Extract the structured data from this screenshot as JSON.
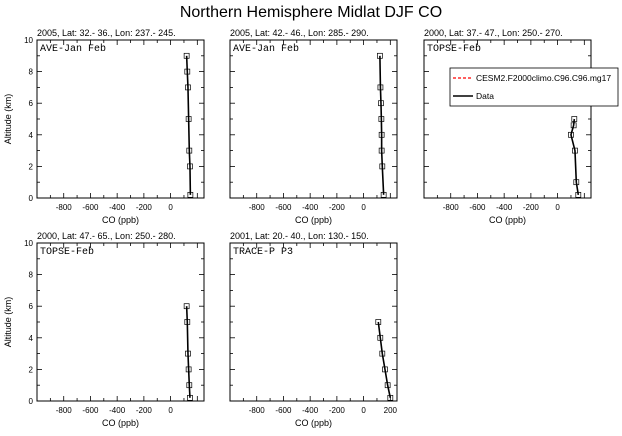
{
  "title": "Northern Hemisphere Midlat DJF CO",
  "legend": {
    "placement": "top-right",
    "entries": [
      {
        "label": "CESM2.F2000climo.C96.C96.mg17",
        "color": "#ff0000",
        "style": "dashed"
      },
      {
        "label": "Data",
        "color": "#000000",
        "style": "solid"
      }
    ]
  },
  "chart_data": [
    {
      "type": "line",
      "title": "2005, Lat: 32.- 36., Lon: 237.- 245.",
      "inset_label": "AVE-Jan Feb",
      "xlabel": "CO (ppb)",
      "ylabel": "Altitude (km)",
      "xlim": [
        -1000,
        250
      ],
      "ylim": [
        0,
        10
      ],
      "xticks": [
        "-800",
        "-600",
        "-400",
        "-200",
        "0"
      ],
      "yticks": [
        "0",
        "2",
        "4",
        "6",
        "8",
        "10"
      ],
      "series": [
        {
          "name": "Data",
          "x": [
            148,
            145,
            140,
            135,
            130,
            125,
            120
          ],
          "y": [
            0.2,
            2,
            3,
            5,
            7,
            8,
            9
          ]
        }
      ]
    },
    {
      "type": "line",
      "title": "2005, Lat: 42.- 46., Lon: 285.- 290.",
      "inset_label": "AVE-Jan Feb",
      "xlabel": "CO (ppb)",
      "ylabel": "",
      "xlim": [
        -1000,
        250
      ],
      "ylim": [
        0,
        10
      ],
      "xticks": [
        "-800",
        "-600",
        "-400",
        "-200",
        "0"
      ],
      "yticks": [],
      "series": [
        {
          "name": "Data",
          "x": [
            150,
            140,
            135,
            135,
            133,
            130,
            126,
            122
          ],
          "y": [
            0.2,
            2,
            3,
            4,
            5,
            6,
            7,
            9
          ]
        }
      ]
    },
    {
      "type": "line",
      "title": "2000, Lat: 37.- 47., Lon: 250.- 270.",
      "inset_label": "TOPSE-Feb",
      "xlabel": "CO (ppb)",
      "ylabel": "",
      "xlim": [
        -1000,
        250
      ],
      "ylim": [
        0,
        10
      ],
      "xticks": [
        "-800",
        "-600",
        "-400",
        "-200",
        "0"
      ],
      "yticks": [],
      "series": [
        {
          "name": "Data",
          "x": [
            155,
            140,
            130,
            100,
            120,
            125
          ],
          "y": [
            0.2,
            1,
            3,
            4,
            4.6,
            5
          ]
        }
      ]
    },
    {
      "type": "line",
      "title": "2000, Lat: 47.- 65., Lon: 250.- 280.",
      "inset_label": "TOPSE-Feb",
      "xlabel": "CO (ppb)",
      "ylabel": "Altitude (km)",
      "xlim": [
        -1000,
        250
      ],
      "ylim": [
        0,
        10
      ],
      "xticks": [
        "-800",
        "-600",
        "-400",
        "-200",
        "0"
      ],
      "yticks": [
        "0",
        "2",
        "4",
        "6",
        "8",
        "10"
      ],
      "series": [
        {
          "name": "Data",
          "x": [
            145,
            140,
            135,
            130,
            125,
            120
          ],
          "y": [
            0.2,
            1,
            2,
            3,
            5,
            6
          ]
        }
      ]
    },
    {
      "type": "line",
      "title": "2001, Lat: 20.- 40., Lon: 130.- 150.",
      "inset_label": "TRACE-P P3",
      "xlabel": "CO (ppb)",
      "ylabel": "",
      "xlim": [
        -1000,
        250
      ],
      "ylim": [
        0,
        10
      ],
      "xticks": [
        "-800",
        "-600",
        "-400",
        "-200",
        "0",
        "200"
      ],
      "yticks": [],
      "series": [
        {
          "name": "Data",
          "x": [
            200,
            180,
            160,
            140,
            125,
            110
          ],
          "y": [
            0.2,
            1,
            2,
            3,
            4,
            5
          ]
        }
      ]
    }
  ]
}
